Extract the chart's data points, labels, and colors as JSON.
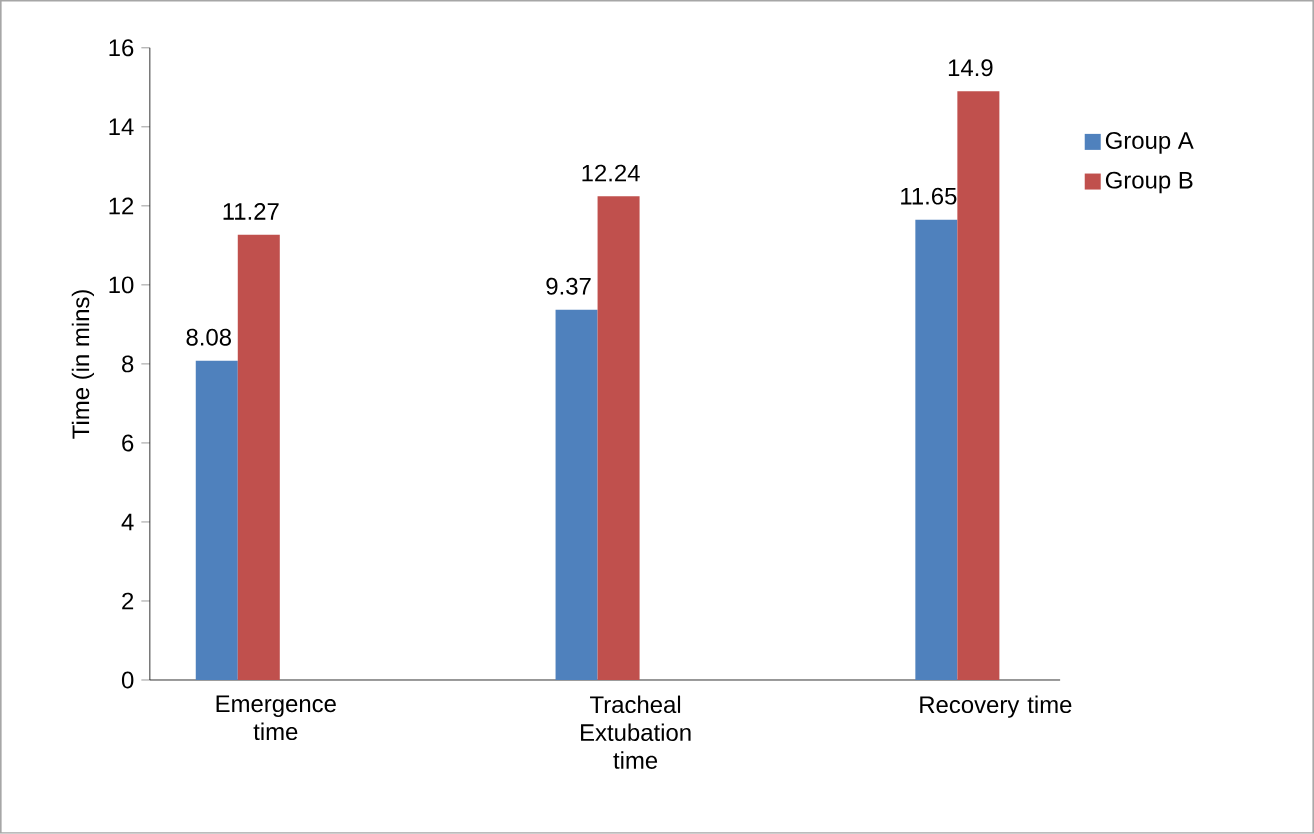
{
  "chart_data": {
    "type": "bar",
    "ylabel": "Time (in mins)",
    "categories": [
      "Emergence time",
      "Tracheal Extubation time",
      "Recovery time"
    ],
    "series": [
      {
        "name": "Group A",
        "color": "#4f81bd",
        "values": [
          8.08,
          9.37,
          11.65
        ]
      },
      {
        "name": "Group B",
        "color": "#c0504d",
        "values": [
          11.27,
          12.24,
          14.9
        ]
      }
    ],
    "ylim": [
      0,
      16
    ],
    "yticks": [
      0,
      2,
      4,
      6,
      8,
      10,
      12,
      14,
      16
    ],
    "data_labels": true,
    "legend": "right"
  }
}
